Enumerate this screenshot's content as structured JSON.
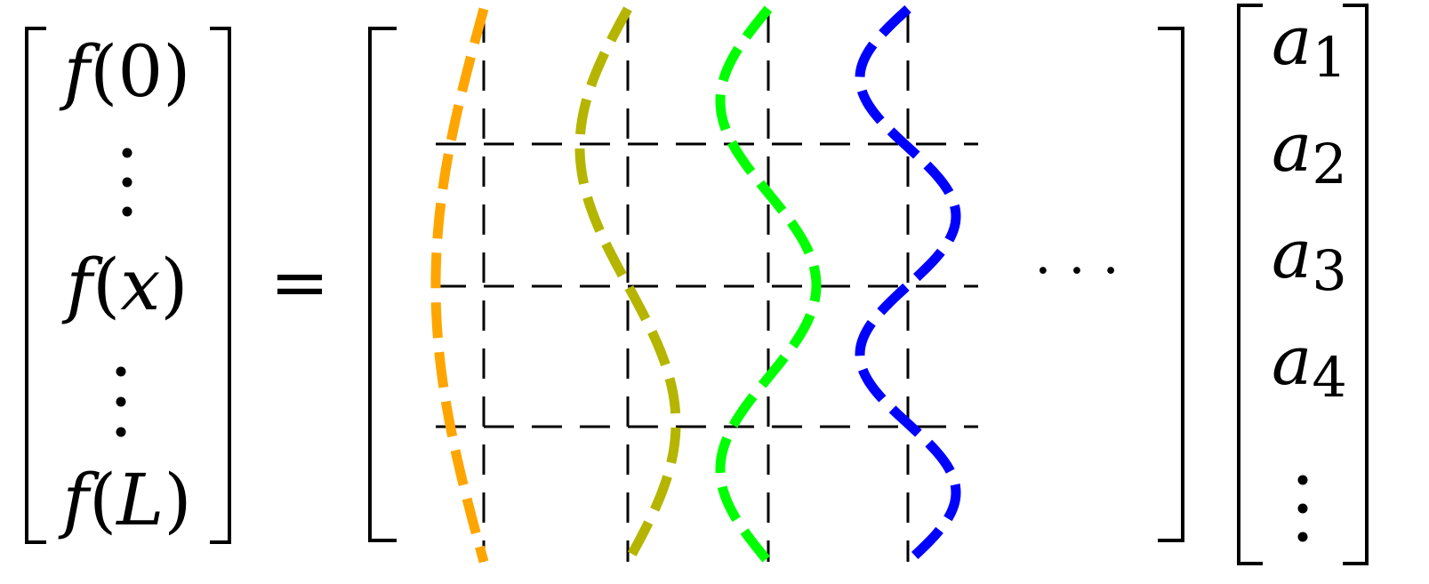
{
  "lhs": {
    "entries": [
      {
        "func": "f",
        "arg": "0"
      },
      {
        "func": "f",
        "arg": "x"
      },
      {
        "func": "f",
        "arg": "L"
      }
    ]
  },
  "equals": "=",
  "ellipsis": "· · ·",
  "coefficients": {
    "symbol": "a",
    "subscripts": [
      "1",
      "2",
      "3",
      "4"
    ]
  },
  "colors": {
    "basis_1": "#ffa500",
    "basis_2": "#b5b500",
    "basis_3": "#00ff00",
    "basis_4": "#0000ff",
    "grid": "#000000",
    "text": "#000000"
  },
  "basis_functions": [
    {
      "color_key": "basis_1",
      "half_periods": 1
    },
    {
      "color_key": "basis_2",
      "half_periods": 2
    },
    {
      "color_key": "basis_3",
      "half_periods": 3
    },
    {
      "color_key": "basis_4",
      "half_periods": 4
    }
  ]
}
